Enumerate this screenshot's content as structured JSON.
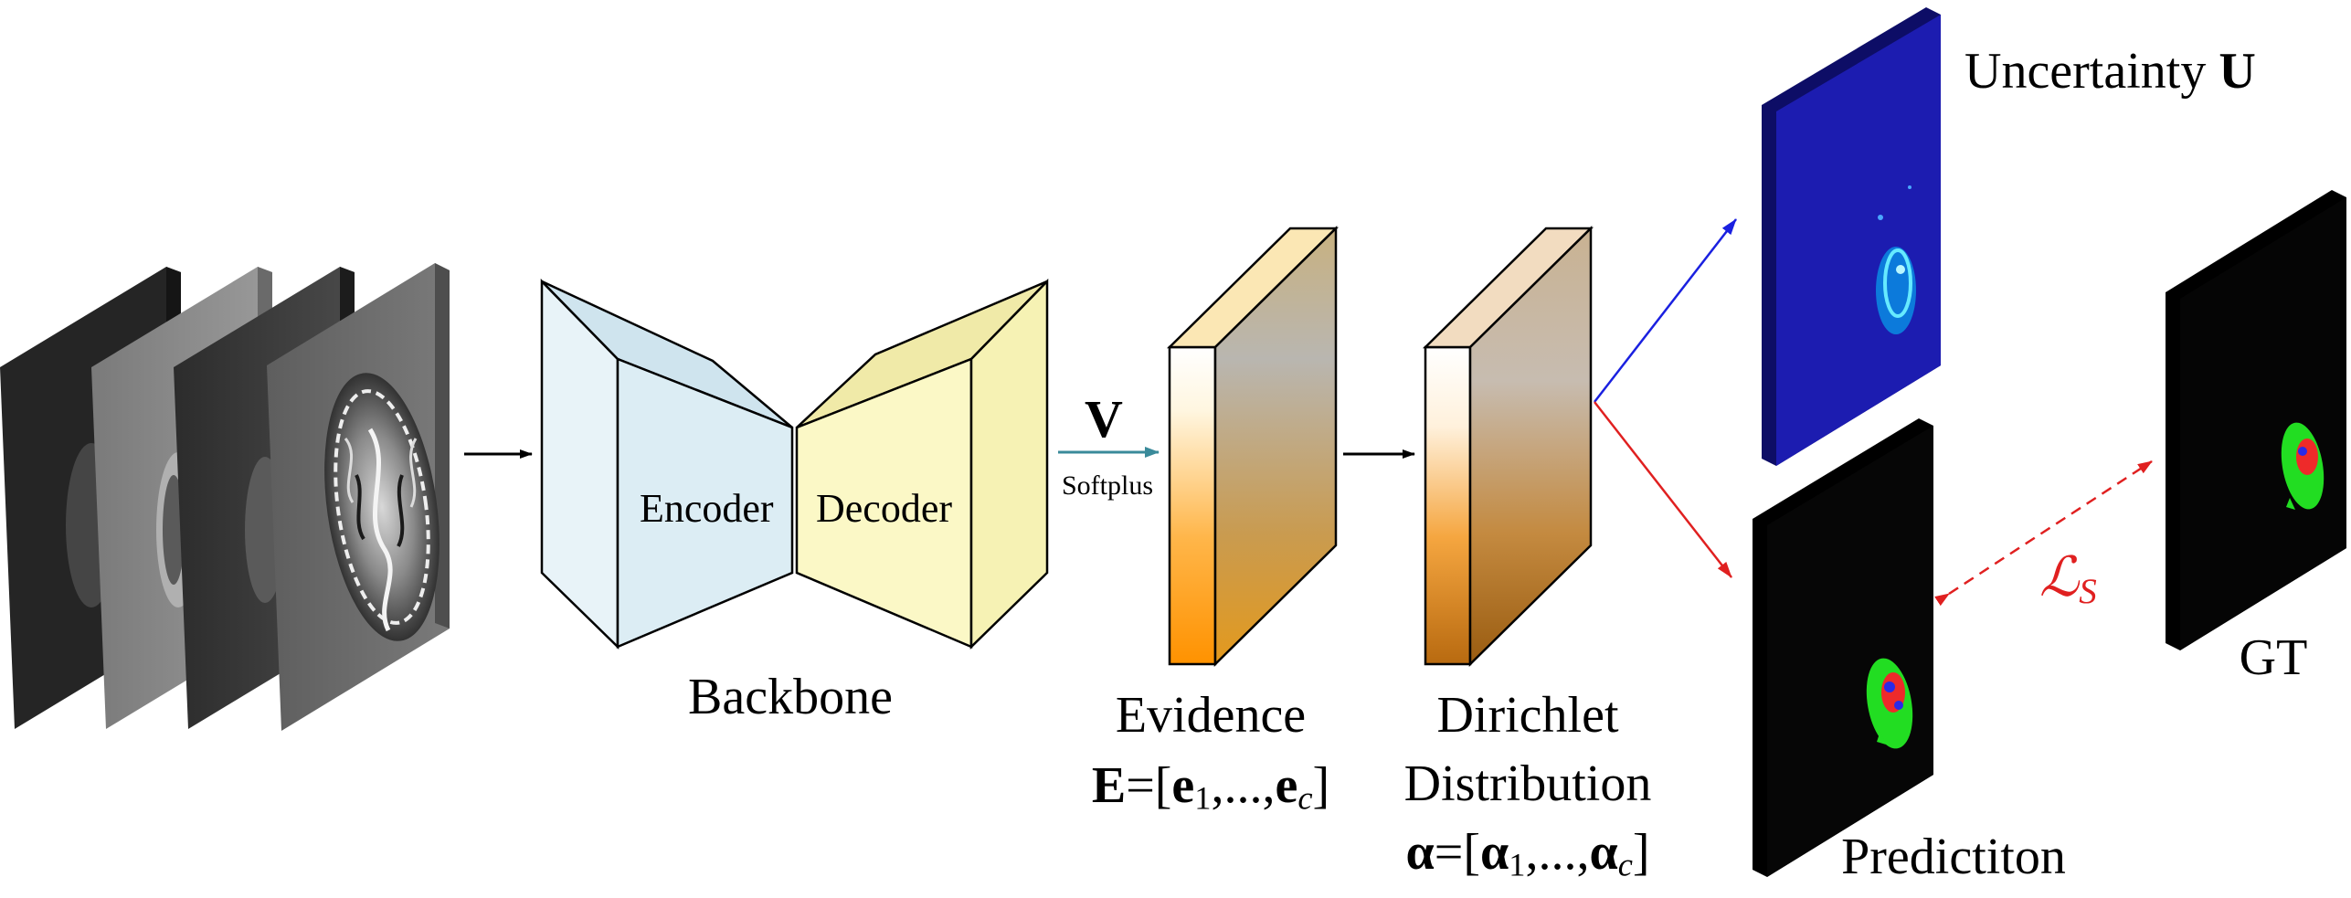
{
  "labels": {
    "encoder": "Encoder",
    "decoder": "Decoder",
    "backbone": "Backbone",
    "v_symbol": "V",
    "softplus": "Softplus",
    "evidence": "Evidence",
    "evidence_formula": {
      "e_sym": "E",
      "eq_open": "=[",
      "e1": "e",
      "sub1": "1",
      "dots": ",...,",
      "ec": "e",
      "subc": "c",
      "close": "]"
    },
    "dirichlet_line1": "Dirichlet",
    "dirichlet_line2": "Distribution",
    "alpha_formula": {
      "a_sym": "α",
      "eq_open": "=[",
      "a1": "α",
      "sub1": "1",
      "dots": ",...,",
      "ac": "α",
      "subc": "c",
      "close": "]"
    },
    "uncertainty_text": "Uncertainty ",
    "uncertainty_symbol": "U",
    "prediction": "Predictiton",
    "gt": "GT",
    "loss_symbol": "ℒ",
    "loss_sub": "S"
  },
  "colors": {
    "encoder_fill": "#dcedf4",
    "decoder_fill": "#fbf8c6",
    "arrow_softplus": "#3a8a9a",
    "arrow_uncertainty": "#1a20e0",
    "arrow_prediction": "#e02020",
    "loss_color": "#e02020",
    "uncertainty_map": "#1a1aa8",
    "mask_green": "#22dd22",
    "mask_red": "#ee2a2a",
    "mask_blue": "#2a2ae8"
  }
}
